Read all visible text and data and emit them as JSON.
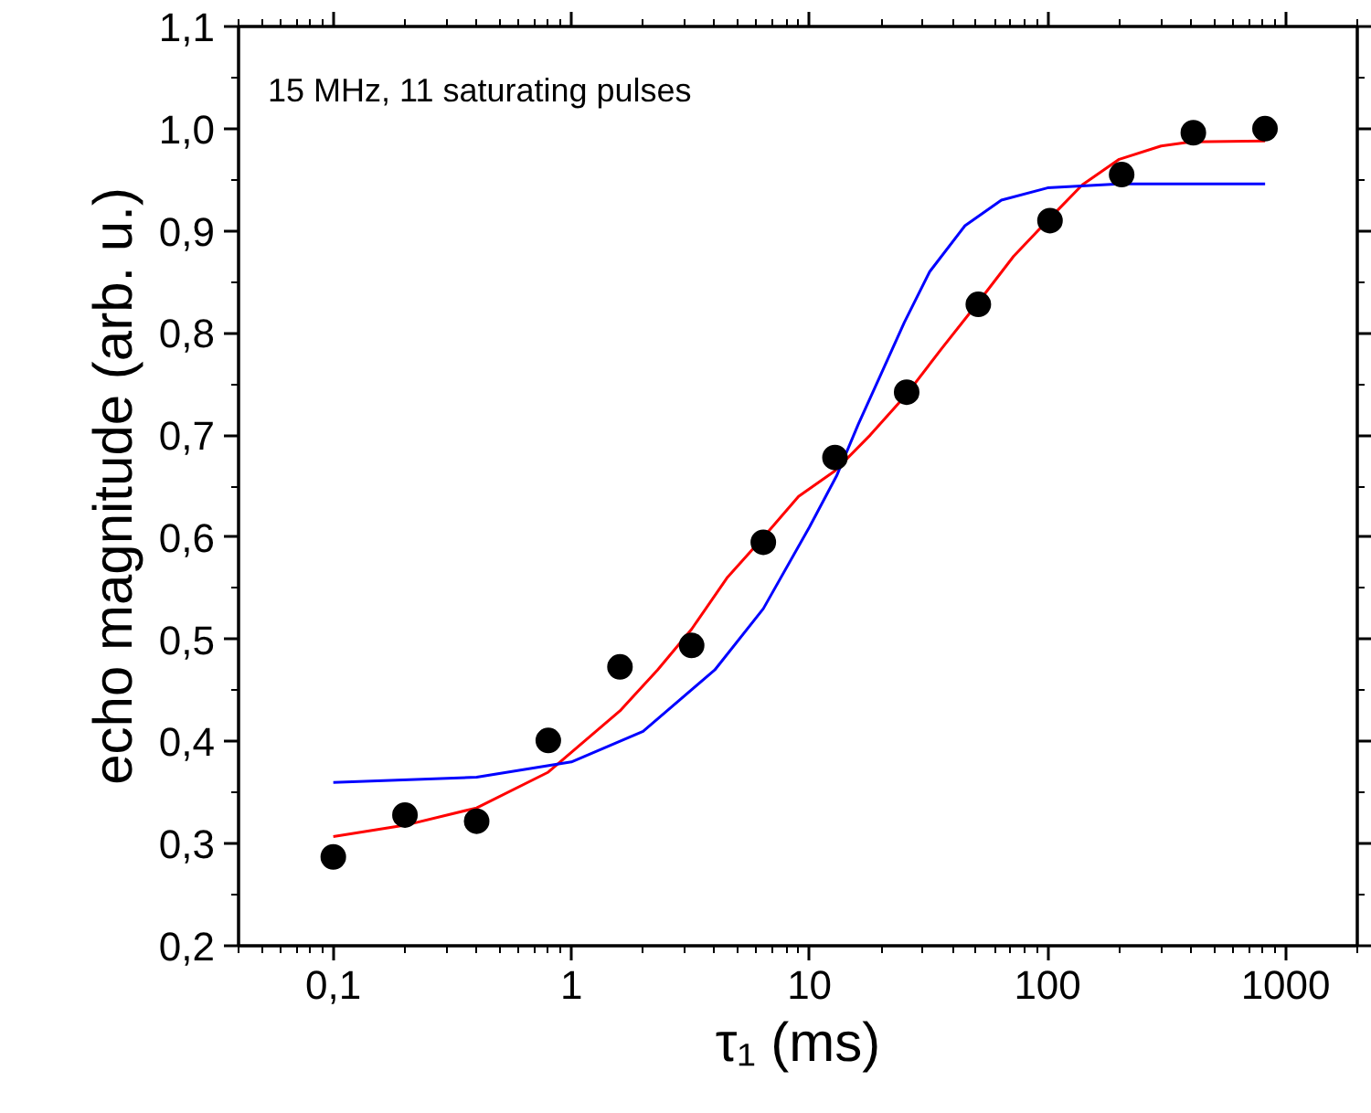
{
  "chart_data": {
    "type": "scatter",
    "xlabel": "τ₁ (ms)",
    "ylabel": "echo magnitude (arb. u.)",
    "annotations": [
      "15 MHz, 11 saturating pulses"
    ],
    "log": "x",
    "grid": false,
    "xlim": [
      0.04,
      2000
    ],
    "ylim": [
      0.2,
      1.1
    ],
    "xticks": [
      {
        "value": 0.1,
        "label": "0,1"
      },
      1,
      10,
      100,
      1000
    ],
    "yticks": [
      {
        "value": 0.2,
        "label": "0,2"
      },
      {
        "value": 0.3,
        "label": "0,3"
      },
      {
        "value": 0.4,
        "label": "0,4"
      },
      {
        "value": 0.5,
        "label": "0,5"
      },
      {
        "value": 0.6,
        "label": "0,6"
      },
      {
        "value": 0.7,
        "label": "0,7"
      },
      {
        "value": 0.8,
        "label": "0,8"
      },
      {
        "value": 0.9,
        "label": "0,9"
      },
      {
        "value": 1.0,
        "label": "1,0"
      },
      {
        "value": 1.1,
        "label": "1,1"
      }
    ],
    "series": [
      {
        "marker": "circle",
        "color": "#000000",
        "x": [
          0.1,
          0.2,
          0.4,
          0.8,
          1.6,
          3.2,
          6.4,
          12.8,
          25.6,
          51.2,
          102.4,
          204.8,
          409.6,
          819.2
        ],
        "values": [
          0.287,
          0.328,
          0.322,
          0.401,
          0.473,
          0.494,
          0.595,
          0.678,
          0.742,
          0.828,
          0.91,
          0.955,
          0.996,
          1.0
        ]
      },
      {
        "type": "line",
        "color": "#ff0000",
        "line_style": "solid",
        "x": [
          0.1,
          0.2,
          0.4,
          0.8,
          1.6,
          2.3,
          3.2,
          4.5,
          6.4,
          9,
          12.8,
          18,
          25.6,
          36,
          51.2,
          72,
          100,
          140,
          200,
          300,
          400,
          820
        ],
        "values": [
          0.307,
          0.318,
          0.335,
          0.37,
          0.43,
          0.47,
          0.51,
          0.56,
          0.6,
          0.64,
          0.665,
          0.7,
          0.74,
          0.785,
          0.83,
          0.875,
          0.91,
          0.945,
          0.97,
          0.983,
          0.987,
          0.988
        ]
      },
      {
        "type": "line",
        "color": "#0000ff",
        "line_style": "solid",
        "x": [
          0.1,
          0.4,
          1,
          2,
          4,
          6.4,
          10,
          13,
          16,
          20,
          25,
          32,
          45,
          64,
          100,
          200,
          820
        ],
        "values": [
          0.36,
          0.365,
          0.38,
          0.41,
          0.47,
          0.53,
          0.61,
          0.66,
          0.71,
          0.76,
          0.81,
          0.86,
          0.905,
          0.93,
          0.942,
          0.946,
          0.946
        ]
      }
    ]
  }
}
